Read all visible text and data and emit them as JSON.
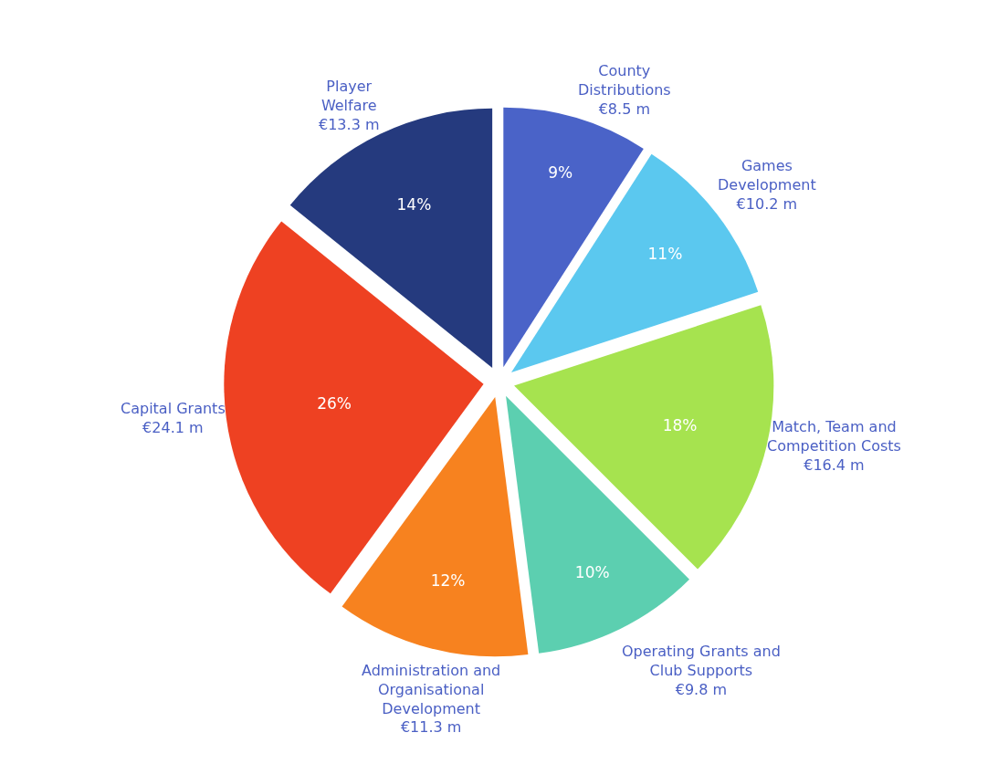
{
  "chart_data": {
    "type": "pie",
    "categories": [
      "County\nDistributions",
      "Games\nDevelopment",
      "Match, Team and\nCompetition Costs",
      "Operating Grants and\nClub Supports",
      "Administration and\nOrganisational\nDevelopment",
      "Capital Grants",
      "Player\nWelfare"
    ],
    "values": [
      8.5,
      10.2,
      16.4,
      9.8,
      11.3,
      24.1,
      13.3
    ],
    "value_labels": [
      "€8.5 m",
      "€10.2 m",
      "€16.4 m",
      "€9.8 m",
      "€11.3 m",
      "€24.1 m",
      "€13.3 m"
    ],
    "annotations": [
      "9%",
      "11%",
      "18%",
      "10%",
      "12%",
      "26%",
      "14%"
    ],
    "colors": [
      "#4a63c8",
      "#5bc8ef",
      "#a6e34f",
      "#5ccfb0",
      "#f7821f",
      "#ee4122",
      "#253a7e"
    ],
    "legend": false
  }
}
